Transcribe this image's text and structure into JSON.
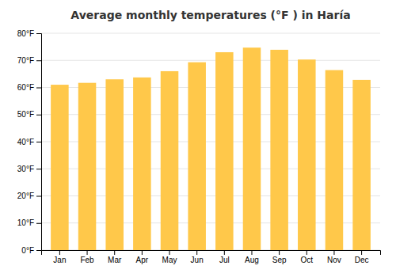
{
  "chart_data": {
    "type": "bar",
    "title": "Average monthly temperatures (°F ) in Haría",
    "categories": [
      "Jan",
      "Feb",
      "Mar",
      "Apr",
      "May",
      "Jun",
      "Jul",
      "Aug",
      "Sep",
      "Oct",
      "Nov",
      "Dec"
    ],
    "values": [
      61.0,
      61.7,
      63.0,
      63.7,
      66.0,
      69.3,
      73.0,
      74.7,
      73.9,
      70.3,
      66.4,
      62.8
    ],
    "color": "#FFC84A",
    "ylim": [
      0,
      80
    ],
    "yticks": [
      {
        "value": 0,
        "label": "0°F"
      },
      {
        "value": 10,
        "label": "10°F"
      },
      {
        "value": 20,
        "label": "20°F"
      },
      {
        "value": 30,
        "label": "30°F"
      },
      {
        "value": 40,
        "label": "40°F"
      },
      {
        "value": 50,
        "label": "50°F"
      },
      {
        "value": 60,
        "label": "60°F"
      },
      {
        "value": 70,
        "label": "70°F"
      },
      {
        "value": 80,
        "label": "80°F"
      }
    ],
    "grid": true
  }
}
